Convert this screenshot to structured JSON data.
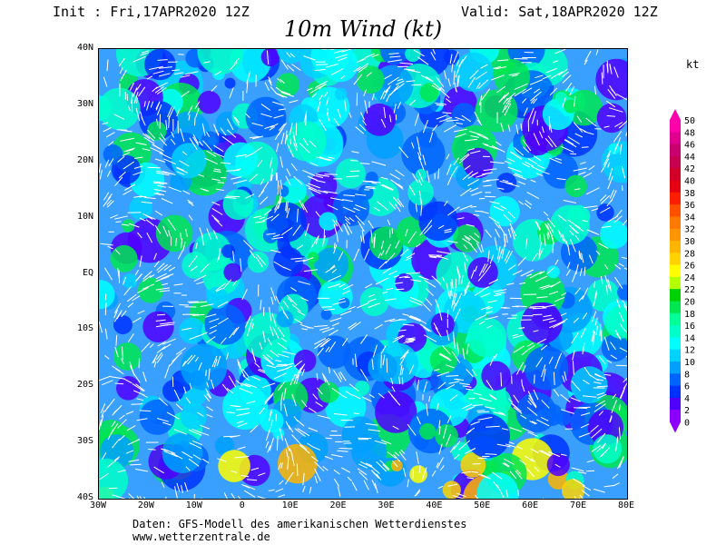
{
  "header": {
    "init": "Init : Fri,17APR2020 12Z",
    "valid": "Valid: Sat,18APR2020 12Z",
    "title": "10m Wind (kt)"
  },
  "map": {
    "lat_labels": [
      "40N",
      "30N",
      "20N",
      "10N",
      "EQ",
      "10S",
      "20S",
      "30S",
      "40S"
    ],
    "lon_labels": [
      "30W",
      "20W",
      "10W",
      "0",
      "10E",
      "20E",
      "30E",
      "40E",
      "50E",
      "60E",
      "70E",
      "80E"
    ],
    "lat_range": [
      -40,
      40
    ],
    "lon_range": [
      -30,
      80
    ]
  },
  "legend": {
    "unit": "kt",
    "ticks": [
      "50",
      "48",
      "46",
      "44",
      "42",
      "40",
      "38",
      "36",
      "34",
      "32",
      "30",
      "28",
      "26",
      "24",
      "22",
      "20",
      "18",
      "16",
      "14",
      "12",
      "10",
      "8",
      "6",
      "4",
      "2",
      "0"
    ],
    "colors": [
      "#ff00aa",
      "#e00090",
      "#c8006e",
      "#c80050",
      "#d20028",
      "#e60014",
      "#ff1e00",
      "#ff5000",
      "#ff7800",
      "#ff9600",
      "#ffb400",
      "#ffd200",
      "#ffff00",
      "#b4ff00",
      "#00d200",
      "#00e650",
      "#00ff96",
      "#00ffc8",
      "#00ffff",
      "#00d2ff",
      "#00a0ff",
      "#0064ff",
      "#0032ff",
      "#5000ff",
      "#8c00ff"
    ]
  },
  "footer": {
    "line1": "Daten: GFS-Modell des amerikanischen Wetterdienstes",
    "line2": "www.wetterzentrale.de"
  }
}
